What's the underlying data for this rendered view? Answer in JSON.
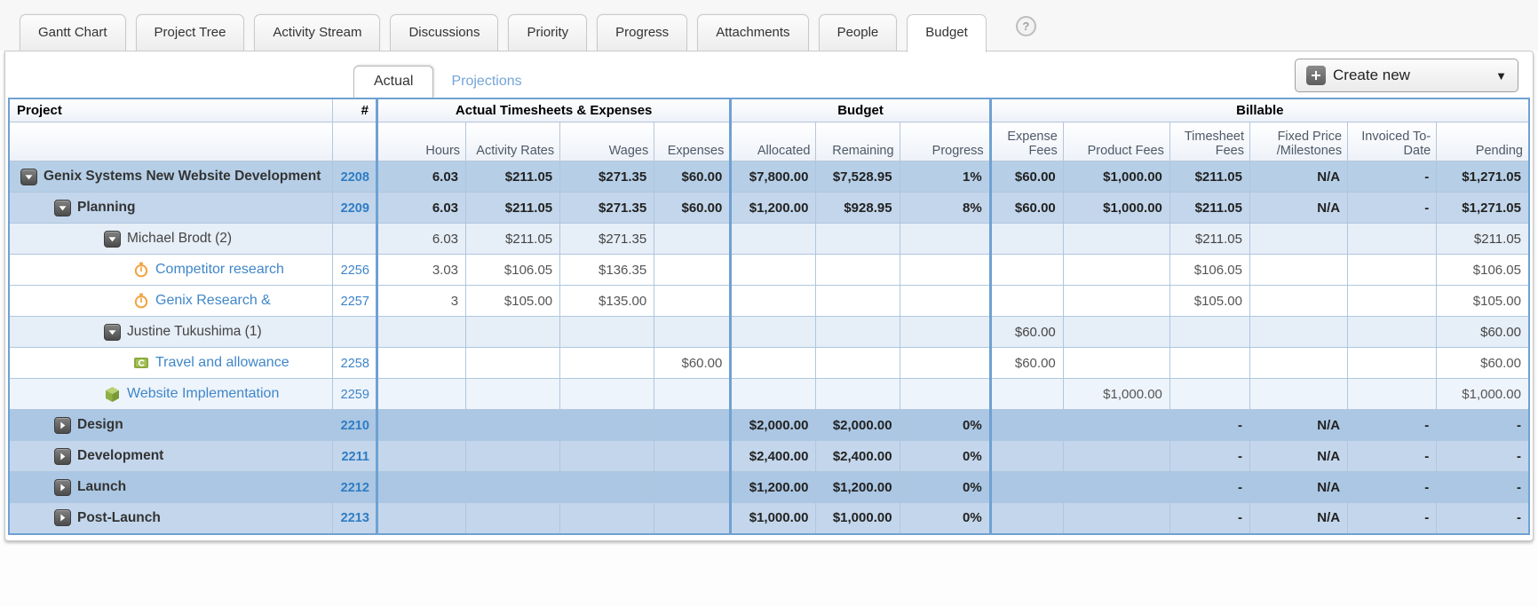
{
  "tabs": {
    "items": [
      {
        "label": "Gantt Chart",
        "active": false
      },
      {
        "label": "Project Tree",
        "active": false
      },
      {
        "label": "Activity Stream",
        "active": false
      },
      {
        "label": "Discussions",
        "active": false
      },
      {
        "label": "Priority",
        "active": false
      },
      {
        "label": "Progress",
        "active": false
      },
      {
        "label": "Attachments",
        "active": false
      },
      {
        "label": "People",
        "active": false
      },
      {
        "label": "Budget",
        "active": true
      }
    ],
    "help_label": "?"
  },
  "toolbar": {
    "subtabs": [
      {
        "label": "Actual",
        "active": true
      },
      {
        "label": "Projections",
        "active": false
      }
    ],
    "create_new_label": "Create new",
    "plus_icon": "plus-icon",
    "caret": "▼"
  },
  "colors": {
    "grid_border": "#6fa1d2",
    "link_blue": "#3f86c9",
    "projections_blue": "#74a5d8",
    "stopwatch_orange": "#f2a440",
    "expense_green": "#8cab3c",
    "cube_green": "#8fb045"
  },
  "table": {
    "groups": [
      {
        "label": "Project",
        "cols": 1,
        "kind": "project"
      },
      {
        "label": "#",
        "cols": 1,
        "kind": "id"
      },
      {
        "label": "Actual Timesheets & Expenses",
        "cols": 4,
        "kind": "group"
      },
      {
        "label": "Budget",
        "cols": 3,
        "kind": "group"
      },
      {
        "label": "Billable",
        "cols": 6,
        "kind": "group"
      }
    ],
    "columns": [
      {
        "key": "hours",
        "label": "Hours"
      },
      {
        "key": "activity_rates",
        "label": "Activity Rates"
      },
      {
        "key": "wages",
        "label": "Wages"
      },
      {
        "key": "expenses",
        "label": "Expenses"
      },
      {
        "key": "allocated",
        "label": "Allocated"
      },
      {
        "key": "remaining",
        "label": "Remaining"
      },
      {
        "key": "progress",
        "label": "Progress"
      },
      {
        "key": "expense_fees",
        "label": "Expense Fees"
      },
      {
        "key": "product_fees",
        "label": "Product Fees"
      },
      {
        "key": "timesheet_fees",
        "label": "Timesheet Fees"
      },
      {
        "key": "fixed_price",
        "label": "Fixed Price /Milestones"
      },
      {
        "key": "invoiced",
        "label": "Invoiced To-Date"
      },
      {
        "key": "pending",
        "label": "Pending"
      }
    ],
    "rows": [
      {
        "name": "Genix Systems New Website Development",
        "id": "2208",
        "level": 0,
        "icon": "expand-open",
        "style": "summary",
        "shade": "d1",
        "cells": [
          "6.03",
          "$211.05",
          "$271.35",
          "$60.00",
          "$7,800.00",
          "$7,528.95",
          "1%",
          "$60.00",
          "$1,000.00",
          "$211.05",
          "N/A",
          "-",
          "$1,271.05"
        ]
      },
      {
        "name": "Planning",
        "id": "2209",
        "level": 1,
        "icon": "expand-open",
        "style": "summary",
        "shade": "d2",
        "cells": [
          "6.03",
          "$211.05",
          "$271.35",
          "$60.00",
          "$1,200.00",
          "$928.95",
          "8%",
          "$60.00",
          "$1,000.00",
          "$211.05",
          "N/A",
          "-",
          "$1,271.05"
        ]
      },
      {
        "name": "Michael Brodt (2)",
        "id": "",
        "level": 2,
        "icon": "expand-open",
        "style": "person",
        "shade": "pale",
        "cells": [
          "6.03",
          "$211.05",
          "$271.35",
          "",
          "",
          "",
          "",
          "",
          "",
          "$211.05",
          "",
          "",
          "$211.05"
        ]
      },
      {
        "name": "Competitor research",
        "id": "2256",
        "level": 3,
        "icon": "stopwatch",
        "style": "task",
        "shade": "white",
        "cells": [
          "3.03",
          "$106.05",
          "$136.35",
          "",
          "",
          "",
          "",
          "",
          "",
          "$106.05",
          "",
          "",
          "$106.05"
        ]
      },
      {
        "name": "Genix Research &",
        "id": "2257",
        "level": 3,
        "icon": "stopwatch",
        "style": "task",
        "shade": "white",
        "cells": [
          "3",
          "$105.00",
          "$135.00",
          "",
          "",
          "",
          "",
          "",
          "",
          "$105.00",
          "",
          "",
          "$105.00"
        ]
      },
      {
        "name": "Justine Tukushima (1)",
        "id": "",
        "level": 2,
        "icon": "expand-open",
        "style": "person",
        "shade": "pale",
        "cells": [
          "",
          "",
          "",
          "",
          "",
          "",
          "",
          "$60.00",
          "",
          "",
          "",
          "",
          "$60.00"
        ]
      },
      {
        "name": "Travel and allowance",
        "id": "2258",
        "level": 3,
        "icon": "expense",
        "style": "task",
        "shade": "white",
        "cells": [
          "",
          "",
          "",
          "$60.00",
          "",
          "",
          "",
          "$60.00",
          "",
          "",
          "",
          "",
          "$60.00"
        ]
      },
      {
        "name": "Website Implementation",
        "id": "2259",
        "level": 2,
        "icon": "cube",
        "style": "task",
        "shade": "faint",
        "cells": [
          "",
          "",
          "",
          "",
          "",
          "",
          "",
          "",
          "$1,000.00",
          "",
          "",
          "",
          "$1,000.00"
        ]
      },
      {
        "name": "Design",
        "id": "2210",
        "level": 1,
        "icon": "expand-closed",
        "style": "summary",
        "shade": "d3",
        "cells": [
          "",
          "",
          "",
          "",
          "$2,000.00",
          "$2,000.00",
          "0%",
          "",
          "",
          "-",
          "N/A",
          "-",
          "-"
        ]
      },
      {
        "name": "Development",
        "id": "2211",
        "level": 1,
        "icon": "expand-closed",
        "style": "summary",
        "shade": "d2",
        "cells": [
          "",
          "",
          "",
          "",
          "$2,400.00",
          "$2,400.00",
          "0%",
          "",
          "",
          "-",
          "N/A",
          "-",
          "-"
        ]
      },
      {
        "name": "Launch",
        "id": "2212",
        "level": 1,
        "icon": "expand-closed",
        "style": "summary",
        "shade": "d3",
        "cells": [
          "",
          "",
          "",
          "",
          "$1,200.00",
          "$1,200.00",
          "0%",
          "",
          "",
          "-",
          "N/A",
          "-",
          "-"
        ]
      },
      {
        "name": "Post-Launch",
        "id": "2213",
        "level": 1,
        "icon": "expand-closed",
        "style": "summary",
        "shade": "d2",
        "cells": [
          "",
          "",
          "",
          "",
          "$1,000.00",
          "$1,000.00",
          "0%",
          "",
          "",
          "-",
          "N/A",
          "-",
          "-"
        ]
      }
    ]
  }
}
